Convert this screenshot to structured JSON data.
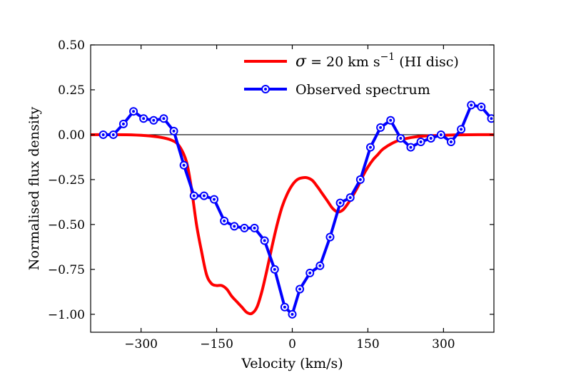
{
  "chart_data": {
    "type": "line",
    "xlabel": "Velocity (km/s)",
    "ylabel": "Normalised flux density",
    "xlim": [
      -400,
      400
    ],
    "ylim": [
      -1.1,
      0.5
    ],
    "xticks": [
      -300,
      -150,
      0,
      150,
      300
    ],
    "xtick_labels": [
      "−300",
      "−150",
      "0",
      "150",
      "300"
    ],
    "yticks": [
      0.5,
      0.25,
      0.0,
      -0.25,
      -0.5,
      -0.75,
      -1.0
    ],
    "ytick_labels": [
      "0.50",
      "0.25",
      "0.00",
      "−0.25",
      "−0.50",
      "−0.75",
      "−1.00"
    ],
    "grid": false,
    "zero_line": true,
    "legend_position": "top-right",
    "legend": {
      "model_prefix": "σ",
      "model_rest": " = 20 km s",
      "model_sup": "−1",
      "model_suffix": " (HI disc)",
      "observed": "Observed spectrum"
    },
    "series": [
      {
        "name": "σ = 20 km s⁻¹ (HI disc)",
        "color": "#ff0000",
        "marker": "none",
        "x": [
          -400,
          -330,
          -290,
          -260,
          -240,
          -225,
          -210,
          -200,
          -190,
          -180,
          -170,
          -160,
          -150,
          -140,
          -130,
          -120,
          -110,
          -100,
          -90,
          -80,
          -70,
          -60,
          -50,
          -40,
          -30,
          -20,
          -10,
          0,
          10,
          20,
          30,
          40,
          50,
          60,
          70,
          80,
          90,
          100,
          110,
          120,
          130,
          140,
          150,
          160,
          170,
          180,
          200,
          220,
          250,
          300,
          350,
          400
        ],
        "y": [
          0.0,
          0.0,
          -0.005,
          -0.015,
          -0.03,
          -0.06,
          -0.15,
          -0.3,
          -0.5,
          -0.65,
          -0.78,
          -0.83,
          -0.84,
          -0.84,
          -0.86,
          -0.9,
          -0.93,
          -0.96,
          -0.99,
          -0.995,
          -0.96,
          -0.87,
          -0.75,
          -0.62,
          -0.5,
          -0.4,
          -0.33,
          -0.28,
          -0.25,
          -0.24,
          -0.24,
          -0.255,
          -0.29,
          -0.33,
          -0.37,
          -0.41,
          -0.43,
          -0.42,
          -0.385,
          -0.34,
          -0.29,
          -0.23,
          -0.18,
          -0.14,
          -0.11,
          -0.08,
          -0.045,
          -0.025,
          -0.01,
          -0.003,
          0.0,
          0.0
        ]
      },
      {
        "name": "Observed spectrum",
        "color": "#0000ff",
        "marker": "circle",
        "x": [
          -375,
          -355,
          -335,
          -315,
          -295,
          -275,
          -255,
          -235,
          -215,
          -195,
          -175,
          -155,
          -135,
          -115,
          -95,
          -75,
          -55,
          -35,
          -15,
          0,
          15,
          35,
          55,
          75,
          95,
          115,
          135,
          155,
          175,
          195,
          215,
          235,
          255,
          275,
          295,
          315,
          335,
          355,
          375,
          395
        ],
        "y": [
          0.0,
          0.0,
          0.06,
          0.13,
          0.09,
          0.08,
          0.09,
          0.02,
          -0.17,
          -0.34,
          -0.34,
          -0.36,
          -0.48,
          -0.51,
          -0.52,
          -0.52,
          -0.59,
          -0.75,
          -0.96,
          -1.0,
          -0.86,
          -0.77,
          -0.73,
          -0.57,
          -0.38,
          -0.35,
          -0.25,
          -0.07,
          0.04,
          0.08,
          -0.02,
          -0.07,
          -0.04,
          -0.02,
          0.0,
          -0.04,
          0.03,
          0.165,
          0.155,
          0.09
        ]
      }
    ]
  }
}
